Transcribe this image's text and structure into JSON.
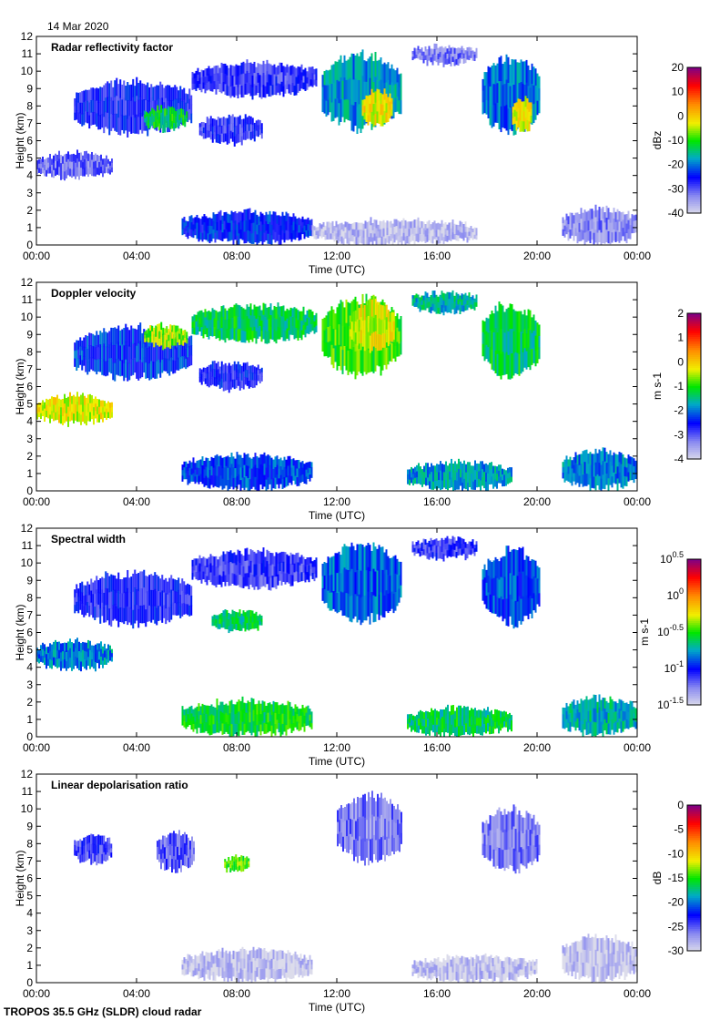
{
  "date_label": "14 Mar 2020",
  "footer": "TROPOS 35.5 GHz (SLDR) cloud radar",
  "chart_data": [
    {
      "type": "heatmap",
      "title": "Radar reflectivity factor",
      "xlabel": "Time (UTC)",
      "ylabel": "Height (km)",
      "xticks": [
        "00:00",
        "04:00",
        "08:00",
        "12:00",
        "16:00",
        "20:00",
        "00:00"
      ],
      "xlim": [
        0,
        24
      ],
      "ylim": [
        0,
        12
      ],
      "yticks": [
        0,
        1,
        2,
        3,
        4,
        5,
        6,
        7,
        8,
        9,
        10,
        11,
        12
      ],
      "colorbar": {
        "label": "dBz",
        "range": [
          -40,
          20
        ],
        "ticks": [
          "20",
          "10",
          "0",
          "-10",
          "-20",
          "-30",
          "-40"
        ]
      },
      "regions": [
        {
          "t": [
            1.5,
            6.2
          ],
          "h": [
            6.3,
            9.6
          ],
          "v": -26
        },
        {
          "t": [
            4.3,
            6.0
          ],
          "h": [
            6.6,
            8.0
          ],
          "v": -12
        },
        {
          "t": [
            6.2,
            11.2
          ],
          "h": [
            8.5,
            10.6
          ],
          "v": -28
        },
        {
          "t": [
            6.5,
            9.0
          ],
          "h": [
            5.8,
            7.5
          ],
          "v": -27
        },
        {
          "t": [
            11.4,
            14.6
          ],
          "h": [
            6.5,
            11.2
          ],
          "v": -18
        },
        {
          "t": [
            13.0,
            14.2
          ],
          "h": [
            6.8,
            9.0
          ],
          "v": -2
        },
        {
          "t": [
            15.0,
            17.6
          ],
          "h": [
            10.4,
            11.5
          ],
          "v": -32
        },
        {
          "t": [
            17.8,
            20.1
          ],
          "h": [
            6.3,
            11.0
          ],
          "v": -20
        },
        {
          "t": [
            19.0,
            19.8
          ],
          "h": [
            6.4,
            8.6
          ],
          "v": -3
        },
        {
          "t": [
            0,
            3.0
          ],
          "h": [
            3.8,
            5.4
          ],
          "v": -31
        },
        {
          "t": [
            5.8,
            11.0
          ],
          "h": [
            0,
            2.0
          ],
          "v": -24
        },
        {
          "t": [
            11.0,
            17.6
          ],
          "h": [
            0,
            1.5
          ],
          "v": -37
        },
        {
          "t": [
            21.0,
            24.0
          ],
          "h": [
            0,
            2.2
          ],
          "v": -33
        }
      ]
    },
    {
      "type": "heatmap",
      "title": "Doppler velocity",
      "xlabel": "Time (UTC)",
      "ylabel": "Height (km)",
      "xticks": [
        "00:00",
        "04:00",
        "08:00",
        "12:00",
        "16:00",
        "20:00",
        "00:00"
      ],
      "xlim": [
        0,
        24
      ],
      "ylim": [
        0,
        12
      ],
      "yticks": [
        0,
        1,
        2,
        3,
        4,
        5,
        6,
        7,
        8,
        9,
        10,
        11,
        12
      ],
      "colorbar": {
        "label": "m s-1",
        "range": [
          -4,
          2
        ],
        "ticks": [
          "2",
          "1",
          "0",
          "-1",
          "-2",
          "-3",
          "-4"
        ]
      },
      "regions": [
        {
          "t": [
            1.5,
            6.2
          ],
          "h": [
            6.3,
            9.6
          ],
          "v": -2.3
        },
        {
          "t": [
            4.3,
            6.0
          ],
          "h": [
            8.2,
            9.6
          ],
          "v": -0.6
        },
        {
          "t": [
            6.2,
            11.2
          ],
          "h": [
            8.5,
            10.8
          ],
          "v": -1.3
        },
        {
          "t": [
            6.5,
            9.0
          ],
          "h": [
            5.8,
            7.5
          ],
          "v": -2.6
        },
        {
          "t": [
            11.4,
            14.6
          ],
          "h": [
            6.5,
            11.3
          ],
          "v": -0.9
        },
        {
          "t": [
            12.5,
            14.3
          ],
          "h": [
            8.0,
            11.0
          ],
          "v": -0.3
        },
        {
          "t": [
            15.0,
            17.6
          ],
          "h": [
            10.2,
            11.5
          ],
          "v": -1.6
        },
        {
          "t": [
            17.8,
            20.1
          ],
          "h": [
            6.3,
            11.0
          ],
          "v": -1.3
        },
        {
          "t": [
            0,
            3.0
          ],
          "h": [
            3.8,
            5.6
          ],
          "v": -0.3
        },
        {
          "t": [
            5.8,
            11.0
          ],
          "h": [
            0,
            2.2
          ],
          "v": -2.2
        },
        {
          "t": [
            14.8,
            19.0
          ],
          "h": [
            0,
            1.8
          ],
          "v": -1.8
        },
        {
          "t": [
            21.0,
            24.0
          ],
          "h": [
            0,
            2.4
          ],
          "v": -1.9
        }
      ]
    },
    {
      "type": "heatmap",
      "title": "Spectral width",
      "xlabel": "Time (UTC)",
      "ylabel": "Height (km)",
      "xticks": [
        "00:00",
        "04:00",
        "08:00",
        "12:00",
        "16:00",
        "20:00",
        "00:00"
      ],
      "xlim": [
        0,
        24
      ],
      "ylim": [
        0,
        12
      ],
      "yticks": [
        0,
        1,
        2,
        3,
        4,
        5,
        6,
        7,
        8,
        9,
        10,
        11,
        12
      ],
      "colorbar": {
        "label": "m s-1",
        "range": [
          -1.5,
          0.5
        ],
        "log10": true,
        "ticks": [
          "0.5",
          "0",
          "-0.5",
          "-1",
          "-1.5"
        ]
      },
      "regions": [
        {
          "t": [
            1.5,
            6.2
          ],
          "h": [
            6.3,
            9.6
          ],
          "v": -1.05
        },
        {
          "t": [
            6.2,
            11.2
          ],
          "h": [
            8.5,
            10.8
          ],
          "v": -1.1
        },
        {
          "t": [
            7.0,
            9.0
          ],
          "h": [
            6.0,
            7.3
          ],
          "v": -0.6
        },
        {
          "t": [
            11.4,
            14.6
          ],
          "h": [
            6.5,
            11.3
          ],
          "v": -0.85
        },
        {
          "t": [
            15.0,
            17.6
          ],
          "h": [
            10.2,
            11.5
          ],
          "v": -1.1
        },
        {
          "t": [
            17.8,
            20.1
          ],
          "h": [
            6.3,
            11.0
          ],
          "v": -0.9
        },
        {
          "t": [
            0,
            3.0
          ],
          "h": [
            3.8,
            5.6
          ],
          "v": -0.8
        },
        {
          "t": [
            5.8,
            11.0
          ],
          "h": [
            0,
            2.2
          ],
          "v": -0.55
        },
        {
          "t": [
            14.8,
            19.0
          ],
          "h": [
            0,
            1.8
          ],
          "v": -0.6
        },
        {
          "t": [
            21.0,
            24.0
          ],
          "h": [
            0,
            2.4
          ],
          "v": -0.7
        }
      ]
    },
    {
      "type": "heatmap",
      "title": "Linear depolarisation ratio",
      "xlabel": "Time (UTC)",
      "ylabel": "Height (km)",
      "xticks": [
        "00:00",
        "04:00",
        "08:00",
        "12:00",
        "16:00",
        "20:00",
        "00:00"
      ],
      "xlim": [
        0,
        24
      ],
      "ylim": [
        0,
        12
      ],
      "yticks": [
        0,
        1,
        2,
        3,
        4,
        5,
        6,
        7,
        8,
        9,
        10,
        11,
        12
      ],
      "colorbar": {
        "label": "dB",
        "range": [
          -30,
          0
        ],
        "ticks": [
          "0",
          "-5",
          "-10",
          "-15",
          "-20",
          "-25",
          "-30"
        ]
      },
      "regions": [
        {
          "t": [
            1.5,
            3.0
          ],
          "h": [
            6.8,
            8.6
          ],
          "v": -24
        },
        {
          "t": [
            4.8,
            6.3
          ],
          "h": [
            6.3,
            8.8
          ],
          "v": -25
        },
        {
          "t": [
            7.5,
            8.5
          ],
          "h": [
            6.3,
            7.3
          ],
          "v": -14
        },
        {
          "t": [
            12.0,
            14.6
          ],
          "h": [
            6.8,
            11.0
          ],
          "v": -26
        },
        {
          "t": [
            17.8,
            20.1
          ],
          "h": [
            6.3,
            10.2
          ],
          "v": -26
        },
        {
          "t": [
            5.8,
            11.0
          ],
          "h": [
            0,
            2.0
          ],
          "v": -29
        },
        {
          "t": [
            15.0,
            20.0
          ],
          "h": [
            0,
            1.6
          ],
          "v": -29
        },
        {
          "t": [
            21.0,
            24.0
          ],
          "h": [
            0,
            2.8
          ],
          "v": -29
        }
      ]
    }
  ]
}
